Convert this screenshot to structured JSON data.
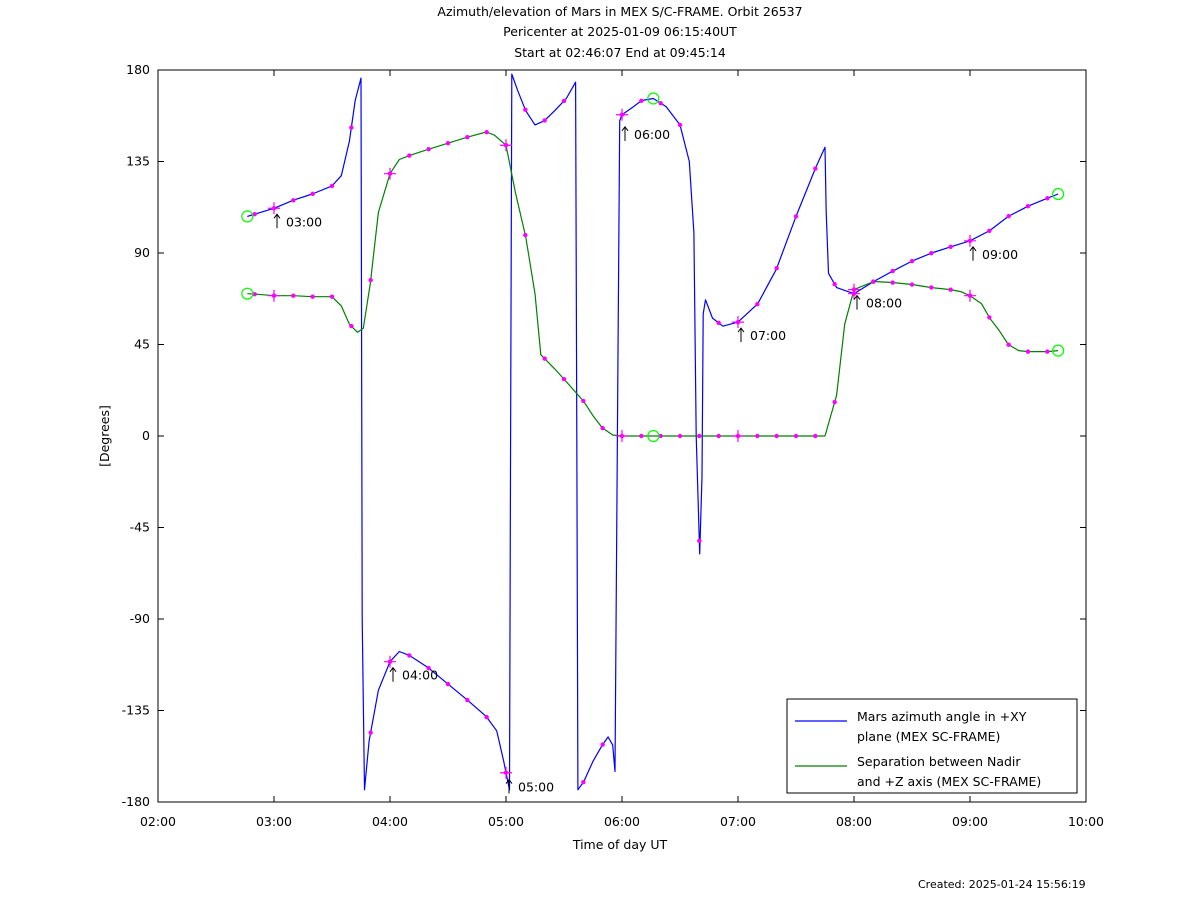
{
  "title_lines": [
    "Azimuth/elevation of Mars in MEX S/C-FRAME.  Orbit 26537",
    "Pericenter at 2025-01-09 06:15:40UT",
    "Start at 02:46:07 End at 09:45:14"
  ],
  "footer": {
    "created": "Created: 2025-01-24 15:56:19"
  },
  "colors": {
    "azimuth": "#0000ff",
    "separation": "#008000",
    "markers": "#ff00ff",
    "endpoints": "#00ff00"
  },
  "chart_data": {
    "type": "line",
    "title": "Azimuth/elevation of Mars in MEX S/C-FRAME.  Orbit 26537",
    "xlabel": "Time of day UT",
    "ylabel": "[Degrees]",
    "xlim": [
      2.0,
      10.0
    ],
    "ylim": [
      -180,
      180
    ],
    "x_ticks": [
      2,
      3,
      4,
      5,
      6,
      7,
      8,
      9,
      10
    ],
    "x_tick_labels": [
      "02:00",
      "03:00",
      "04:00",
      "05:00",
      "06:00",
      "07:00",
      "08:00",
      "09:00",
      "10:00"
    ],
    "y_ticks": [
      180,
      135,
      90,
      45,
      0,
      -45,
      -90,
      -135,
      -180
    ],
    "y_tick_labels": [
      "180",
      "135",
      "90",
      "45",
      "0",
      "-45",
      "-90",
      "-135",
      "-180"
    ],
    "legend_position": "bottom-right",
    "series": [
      {
        "name": "Mars azimuth angle in +XY plane (MEX SC-FRAME)",
        "legend_lines": [
          "Mars azimuth angle in +XY",
          "plane (MEX SC-FRAME)"
        ],
        "points": [
          [
            2.77,
            108
          ],
          [
            3.0,
            112
          ],
          [
            3.17,
            116
          ],
          [
            3.33,
            119
          ],
          [
            3.5,
            123
          ],
          [
            3.58,
            128
          ],
          [
            3.65,
            145
          ],
          [
            3.7,
            165
          ],
          [
            3.75,
            176
          ],
          [
            3.76,
            -90
          ],
          [
            3.78,
            -174
          ],
          [
            3.82,
            -150
          ],
          [
            3.9,
            -125
          ],
          [
            4.0,
            -111
          ],
          [
            4.08,
            -106
          ],
          [
            4.17,
            -108
          ],
          [
            4.33,
            -114
          ],
          [
            4.5,
            -122
          ],
          [
            4.67,
            -130
          ],
          [
            4.83,
            -138
          ],
          [
            4.92,
            -145
          ],
          [
            4.98,
            -160
          ],
          [
            5.03,
            -174
          ],
          [
            5.04,
            0
          ],
          [
            5.05,
            178
          ],
          [
            5.1,
            170
          ],
          [
            5.17,
            160
          ],
          [
            5.25,
            153
          ],
          [
            5.33,
            155
          ],
          [
            5.42,
            160
          ],
          [
            5.52,
            166
          ],
          [
            5.6,
            174
          ],
          [
            5.61,
            0
          ],
          [
            5.62,
            -174
          ],
          [
            5.67,
            -170
          ],
          [
            5.75,
            -160
          ],
          [
            5.83,
            -152
          ],
          [
            5.88,
            -148
          ],
          [
            5.92,
            -152
          ],
          [
            5.94,
            -165
          ],
          [
            5.96,
            0
          ],
          [
            5.98,
            155
          ],
          [
            6.0,
            158
          ],
          [
            6.1,
            162
          ],
          [
            6.17,
            165
          ],
          [
            6.27,
            166
          ],
          [
            6.38,
            162
          ],
          [
            6.5,
            153
          ],
          [
            6.58,
            135
          ],
          [
            6.62,
            100
          ],
          [
            6.64,
            0
          ],
          [
            6.67,
            -58
          ],
          [
            6.69,
            -20
          ],
          [
            6.7,
            60
          ],
          [
            6.72,
            67
          ],
          [
            6.78,
            58
          ],
          [
            6.87,
            54
          ],
          [
            7.0,
            56
          ],
          [
            7.17,
            65
          ],
          [
            7.33,
            82
          ],
          [
            7.5,
            108
          ],
          [
            7.67,
            132
          ],
          [
            7.75,
            142
          ],
          [
            7.76,
            110
          ],
          [
            7.78,
            80
          ],
          [
            7.85,
            73
          ],
          [
            8.0,
            70
          ],
          [
            8.17,
            76
          ],
          [
            8.33,
            81
          ],
          [
            8.5,
            86
          ],
          [
            8.67,
            90
          ],
          [
            8.83,
            93
          ],
          [
            9.0,
            96
          ],
          [
            9.17,
            101
          ],
          [
            9.33,
            108
          ],
          [
            9.5,
            113
          ],
          [
            9.67,
            117
          ],
          [
            9.76,
            119
          ]
        ]
      },
      {
        "name": "Separation between Nadir and +Z axis (MEX SC-FRAME)",
        "legend_lines": [
          "Separation between Nadir",
          "and +Z axis (MEX SC-FRAME)"
        ],
        "points": [
          [
            2.77,
            70
          ],
          [
            2.9,
            69.5
          ],
          [
            3.0,
            69
          ],
          [
            3.17,
            69
          ],
          [
            3.33,
            68.5
          ],
          [
            3.5,
            68.5
          ],
          [
            3.58,
            64
          ],
          [
            3.65,
            55
          ],
          [
            3.72,
            51
          ],
          [
            3.77,
            53
          ],
          [
            3.83,
            75
          ],
          [
            3.9,
            110
          ],
          [
            4.0,
            129
          ],
          [
            4.08,
            136
          ],
          [
            4.17,
            138
          ],
          [
            4.33,
            141
          ],
          [
            4.5,
            144
          ],
          [
            4.67,
            147
          ],
          [
            4.83,
            149.5
          ],
          [
            4.9,
            148
          ],
          [
            5.0,
            143
          ],
          [
            5.08,
            120
          ],
          [
            5.17,
            98
          ],
          [
            5.25,
            70
          ],
          [
            5.3,
            40
          ],
          [
            5.42,
            33
          ],
          [
            5.5,
            28
          ],
          [
            5.67,
            17
          ],
          [
            5.75,
            10
          ],
          [
            5.83,
            4
          ],
          [
            5.92,
            0.5
          ],
          [
            6.0,
            0
          ],
          [
            6.27,
            0
          ],
          [
            6.5,
            0
          ],
          [
            7.0,
            0
          ],
          [
            7.5,
            0
          ],
          [
            7.75,
            0
          ],
          [
            7.85,
            20
          ],
          [
            7.92,
            55
          ],
          [
            8.0,
            72
          ],
          [
            8.17,
            76
          ],
          [
            8.33,
            75.5
          ],
          [
            8.5,
            74.5
          ],
          [
            8.67,
            73
          ],
          [
            8.83,
            72
          ],
          [
            8.92,
            71
          ],
          [
            9.0,
            69
          ],
          [
            9.1,
            65
          ],
          [
            9.17,
            58
          ],
          [
            9.25,
            52
          ],
          [
            9.33,
            45
          ],
          [
            9.42,
            42
          ],
          [
            9.5,
            41.5
          ],
          [
            9.67,
            41.5
          ],
          [
            9.76,
            42
          ]
        ]
      }
    ],
    "annotations": [
      {
        "label": "03:00",
        "x": 3.0,
        "y": 112
      },
      {
        "label": "04:00",
        "x": 4.0,
        "y": -111
      },
      {
        "label": "05:00",
        "x": 5.0,
        "y": -166
      },
      {
        "label": "06:00",
        "x": 6.0,
        "y": 155
      },
      {
        "label": "07:00",
        "x": 7.0,
        "y": 56
      },
      {
        "label": "08:00",
        "x": 8.0,
        "y": 72
      },
      {
        "label": "09:00",
        "x": 9.0,
        "y": 96
      }
    ]
  }
}
